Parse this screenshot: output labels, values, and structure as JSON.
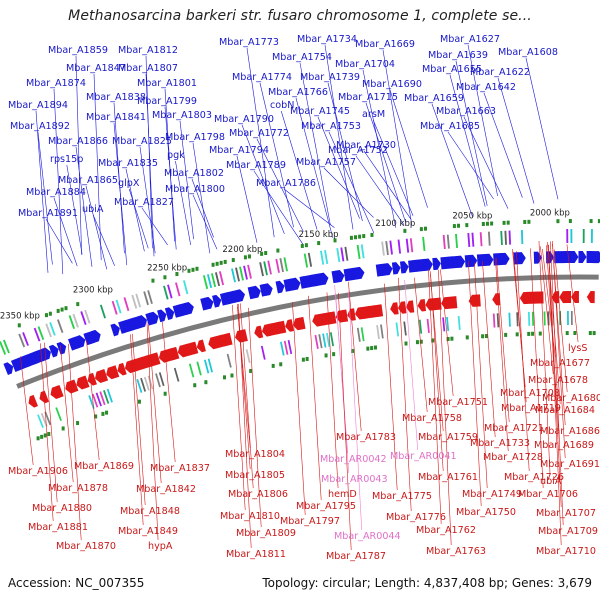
{
  "title": "Methanosarcina barkeri str. fusaro chromosome 1, complete se...",
  "footer": {
    "accession": "Accession: NC_007355",
    "summary": "Topology: circular; Length: 4,837,408 bp; Genes: 3,679"
  },
  "colors": {
    "forward_strand": "#1818e0",
    "reverse_strand": "#e01818",
    "rna_gene": "#f080d0",
    "backbone": "#7a7a7a"
  },
  "ticks": [
    "2000 kbp",
    "2050 kbp",
    "2100 kbp",
    "2150 kbp",
    "2200 kbp",
    "2250 kbp",
    "2300 kbp",
    "2350 kbp"
  ],
  "top_labels": [
    "Mbar_A1859",
    "Mbar_A1812",
    "Mbar_A1847",
    "Mbar_A1807",
    "Mbar_A1874",
    "Mbar_A1801",
    "Mbar_A1838",
    "Mbar_A1799",
    "Mbar_A1894",
    "Mbar_A1841",
    "Mbar_A1803",
    "Mbar_A1892",
    "Mbar_A1825",
    "Mbar_A1866",
    "Mbar_A1798",
    "rps15p",
    "Mbar_A1835",
    "pgk",
    "Mbar_A1794",
    "Mbar_A1865",
    "Mbar_A1802",
    "glpX",
    "Mbar_A1884",
    "Mbar_A1800",
    "ubiA",
    "Mbar_A1827",
    "Mbar_A1891",
    "Mbar_A1773",
    "Mbar_A1734",
    "Mbar_A1669",
    "Mbar_A1627",
    "Mbar_A1754",
    "Mbar_A1639",
    "Mbar_A1608",
    "Mbar_A1704",
    "Mbar_A1774",
    "Mbar_A1739",
    "Mbar_A1655",
    "Mbar_A1622",
    "Mbar_A1766",
    "Mbar_A1690",
    "Mbar_A1642",
    "cobN",
    "Mbar_A1715",
    "Mbar_A1659",
    "Mbar_A1745",
    "Mbar_A1790",
    "arsM",
    "Mbar_A1663",
    "Mbar_A1753",
    "Mbar_A1685",
    "Mbar_A1772",
    "Mbar_A1730",
    "Mbar_A1752",
    "Mbar_A1789",
    "Mbar_A1757",
    "Mbar_A1786"
  ],
  "bottom_labels": [
    "lysS",
    "Mbar_A1677",
    "Mbar_A1678",
    "Mbar_A1708",
    "Mbar_A1680",
    "Mbar_A1751",
    "Mbar_A1719",
    "Mbar_A1684",
    "Mbar_A1758",
    "Mbar_A1721",
    "Mbar_A1686",
    "Mbar_A1783",
    "Mbar_A1759",
    "Mbar_A1733",
    "Mbar_A1689",
    "Mbar_AR0042",
    "Mbar_AR0041",
    "Mbar_A1728",
    "Mbar_A1804",
    "Mbar_A1691",
    "Mbar_A1906",
    "Mbar_A1869",
    "Mbar_A1837",
    "Mbar_A1805",
    "Mbar_AR0043",
    "Mbar_A1761",
    "Mbar_A1726",
    "ubiA",
    "hemD",
    "Mbar_A1878",
    "Mbar_A1842",
    "Mbar_A1806",
    "Mbar_A1775",
    "Mbar_A1749",
    "Mbar_A1706",
    "Mbar_A1880",
    "Mbar_A1848",
    "Mbar_A1795",
    "Mbar_A1707",
    "Mbar_A1810",
    "Mbar_A1797",
    "Mbar_A1776",
    "Mbar_A1750",
    "Mbar_A1881",
    "Mbar_A1849",
    "Mbar_A1809",
    "Mbar_A1762",
    "Mbar_A1709",
    "Mbar_AR0044",
    "Mbar_A1870",
    "hypA",
    "Mbar_A1811",
    "Mbar_A1787",
    "Mbar_A1763",
    "Mbar_A1710"
  ]
}
